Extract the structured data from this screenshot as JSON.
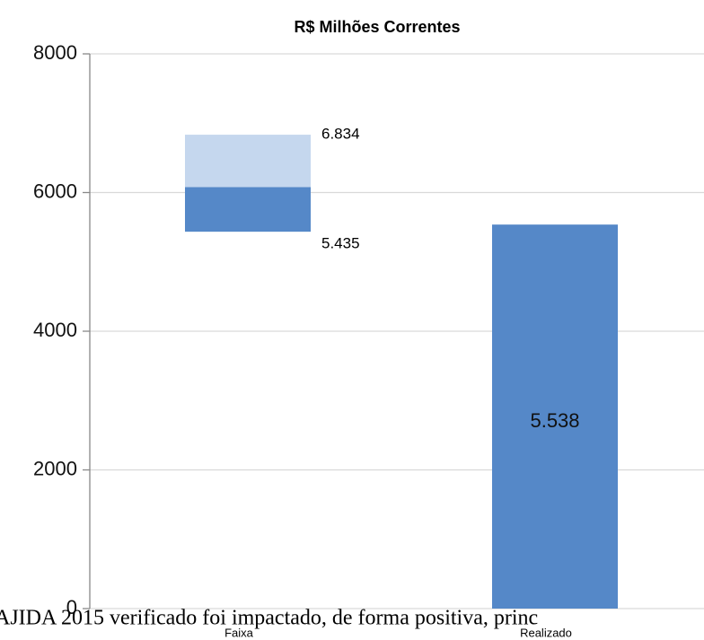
{
  "chart_data": {
    "type": "floating_bar",
    "title": "R$ Milhões Correntes",
    "categories": [
      "Faixa",
      "Realizado"
    ],
    "values": [
      null,
      5538
    ],
    "value_labels": [
      null,
      "5.538"
    ],
    "color": "#5588c8",
    "range": {
      "category": "Faixa",
      "low": 5435,
      "mid": 6080,
      "high": 6834,
      "low_label": "5.435",
      "high_label": "6.834",
      "low_color": "#5588c8",
      "high_color": "#c5d7ee"
    },
    "ylim": [
      0,
      8000
    ],
    "yticks": [
      0,
      2000,
      4000,
      6000,
      8000
    ],
    "grid": true,
    "annotation": "AJIDA 2015 verificado foi impactado, de forma positiva, princ"
  }
}
